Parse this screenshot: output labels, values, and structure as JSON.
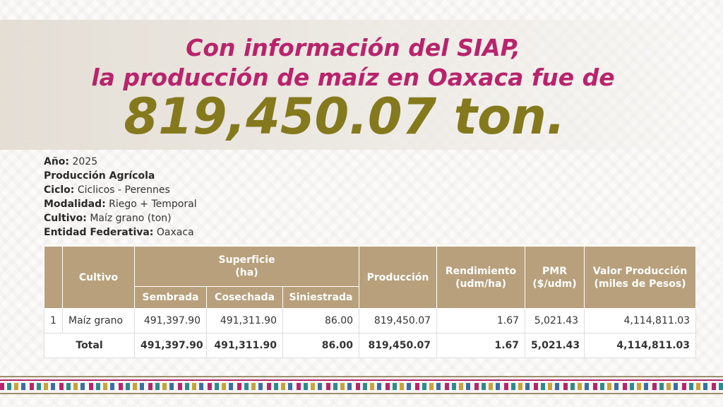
{
  "header": {
    "line1": "Con información del SIAP,",
    "line2": "la producción de maíz en Oaxaca fue de",
    "highlight": "819,450.07 ton."
  },
  "meta": [
    {
      "label": "Año:",
      "value": "2025"
    },
    {
      "label": "Producción Agrícola"
    },
    {
      "label": "Ciclo:",
      "value": "Ciclicos - Perennes"
    },
    {
      "label": "Modalidad:",
      "value": "Riego + Temporal"
    },
    {
      "label": "Cultivo:",
      "value": "Maíz grano (ton)"
    },
    {
      "label": "Entidad Federativa:",
      "value": "Oaxaca"
    }
  ],
  "table": {
    "header": {
      "cultivo": "Cultivo",
      "superficie": [
        "Superficie",
        "(ha)"
      ],
      "produccion": "Producción",
      "rendimiento": [
        "Rendimiento",
        "(udm/ha)"
      ],
      "pmr": [
        "PMR",
        "($/udm)"
      ],
      "valor": [
        "Valor Producción",
        "(miles de Pesos)"
      ],
      "sub": [
        "Sembrada",
        "Cosechada",
        "Siniestrada"
      ]
    },
    "rows": [
      [
        "1",
        "Maíz grano",
        "491,397.90",
        "491,311.90",
        "86.00",
        "819,450.07",
        "1.67",
        "5,021.43",
        "4,114,811.03"
      ]
    ],
    "total": [
      "Total",
      "491,397.90",
      "491,311.90",
      "86.00",
      "819,450.07",
      "1.67",
      "5,021.43",
      "4,114,811.03"
    ]
  }
}
